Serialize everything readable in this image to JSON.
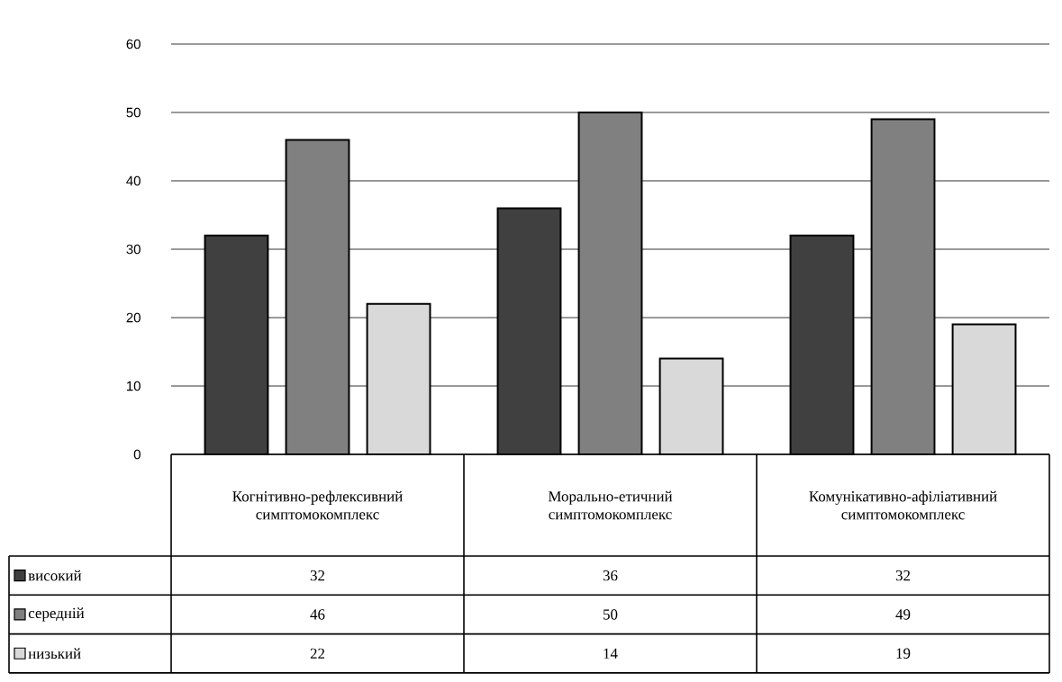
{
  "chart_data": {
    "type": "bar",
    "categories": [
      "Когнітивно-рефлексивний симптомокомплекс",
      "Морально-етичний симптомокомплекс",
      "Комунікативно-афіліативний симптомокомплекс"
    ],
    "series": [
      {
        "name": "високий",
        "color": "#404040",
        "values": [
          32,
          36,
          32
        ]
      },
      {
        "name": "середній",
        "color": "#808080",
        "values": [
          46,
          50,
          49
        ]
      },
      {
        "name": "низький",
        "color": "#d9d9d9",
        "values": [
          22,
          14,
          19
        ]
      }
    ],
    "ylim": [
      0,
      60
    ],
    "yticks": [
      0,
      10,
      20,
      30,
      40,
      50,
      60
    ],
    "grid": "y",
    "legend": "bottom left",
    "data_labels": true
  }
}
